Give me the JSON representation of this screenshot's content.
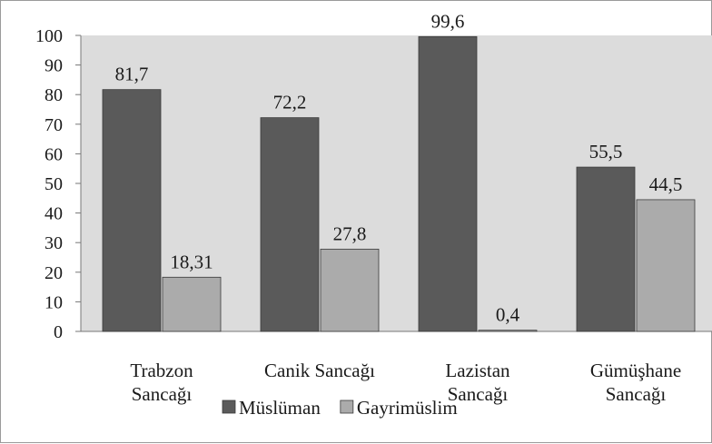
{
  "chart_data": {
    "type": "bar",
    "categories": [
      [
        "Trabzon",
        "Sancağı"
      ],
      [
        "Canik Sancağı"
      ],
      [
        "Lazistan",
        "Sancağı"
      ],
      [
        "Gümüşhane",
        "Sancağı"
      ]
    ],
    "series": [
      {
        "name": "Müslüman",
        "color": "#5a5a5a",
        "values": [
          81.7,
          72.2,
          99.6,
          55.5
        ],
        "labels": [
          "81,7",
          "72,2",
          "99,6",
          "55,5"
        ]
      },
      {
        "name": "Gayrimüslim",
        "color": "#ababab",
        "values": [
          18.31,
          27.8,
          0.4,
          44.5
        ],
        "labels": [
          "18,31",
          "27,8",
          "0,4",
          "44,5"
        ]
      }
    ],
    "yticks": [
      "0",
      "10",
      "20",
      "30",
      "40",
      "50",
      "60",
      "70",
      "80",
      "90",
      "100"
    ],
    "ylim": [
      0,
      100
    ],
    "plot_background": "#dcdcdc",
    "legend_position": "bottom"
  }
}
